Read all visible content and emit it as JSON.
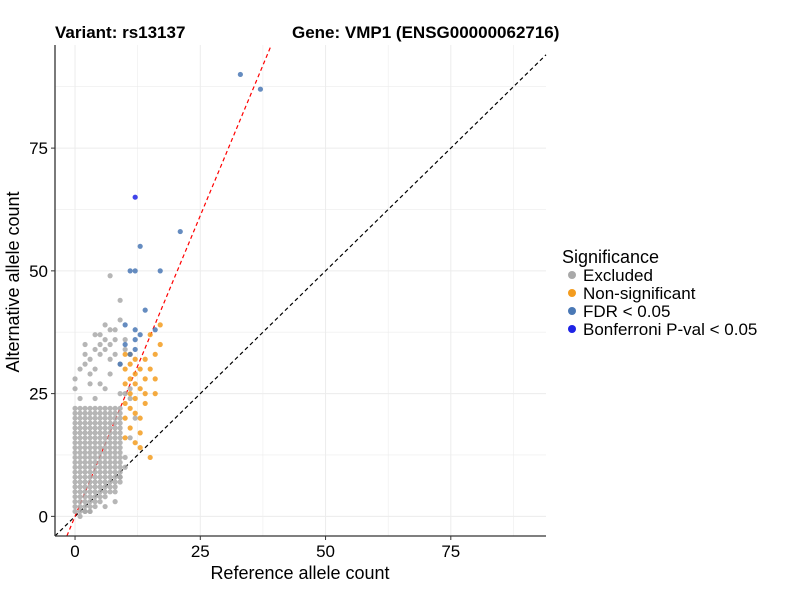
{
  "chart_data": {
    "type": "scatter",
    "title_left": "Variant: rs13137",
    "title_right": "Gene: VMP1 (ENSG00000062716)",
    "xlabel": "Reference allele count",
    "ylabel": "Alternative allele count",
    "xlim": [
      -4,
      94
    ],
    "ylim": [
      -4,
      96
    ],
    "xticks": [
      0,
      25,
      50,
      75
    ],
    "yticks": [
      0,
      25,
      50,
      75
    ],
    "grid": true,
    "legend": {
      "title": "Significance",
      "position": "right",
      "entries": [
        {
          "label": "Excluded",
          "color": "#A9A9A9"
        },
        {
          "label": "Non-significant",
          "color": "#F39C1F"
        },
        {
          "label": "FDR < 0.05",
          "color": "#4A78B5"
        },
        {
          "label": "Bonferroni P-val < 0.05",
          "color": "#1E23E6"
        }
      ]
    },
    "reference_lines": [
      {
        "name": "identity",
        "slope": 1,
        "intercept": 0,
        "color": "#000000",
        "style": "dashed"
      },
      {
        "name": "fitted",
        "slope": 2.45,
        "intercept": 0,
        "color": "#FF0000",
        "style": "dashed"
      }
    ],
    "series": [
      {
        "name": "Excluded",
        "color": "#A9A9A9",
        "fill_region": {
          "x_range": [
            0,
            9
          ],
          "y_range": [
            1,
            22
          ]
        },
        "points": [
          [
            0,
            26
          ],
          [
            0,
            28
          ],
          [
            1,
            30
          ],
          [
            2,
            31
          ],
          [
            2,
            33
          ],
          [
            3,
            29
          ],
          [
            3,
            32
          ],
          [
            4,
            34
          ],
          [
            4,
            30
          ],
          [
            5,
            33
          ],
          [
            5,
            35
          ],
          [
            5,
            37
          ],
          [
            6,
            34
          ],
          [
            6,
            36
          ],
          [
            7,
            32
          ],
          [
            7,
            35
          ],
          [
            7,
            38
          ],
          [
            8,
            33
          ],
          [
            8,
            36
          ],
          [
            8,
            38
          ],
          [
            9,
            40
          ],
          [
            9,
            44
          ],
          [
            7,
            49
          ],
          [
            10,
            34
          ],
          [
            10,
            36
          ],
          [
            10,
            25
          ],
          [
            11,
            26
          ],
          [
            11,
            24
          ],
          [
            1,
            0
          ],
          [
            2,
            1
          ],
          [
            3,
            1
          ],
          [
            8,
            5
          ],
          [
            9,
            8
          ],
          [
            10,
            10
          ],
          [
            8,
            3
          ],
          [
            6,
            2
          ],
          [
            10,
            12
          ],
          [
            11,
            16
          ],
          [
            12,
            20
          ],
          [
            4,
            24
          ],
          [
            6,
            26
          ],
          [
            1,
            24
          ],
          [
            9,
            25
          ],
          [
            3,
            27
          ],
          [
            5,
            27
          ],
          [
            7,
            29
          ],
          [
            9,
            31
          ],
          [
            2,
            35
          ],
          [
            6,
            39
          ],
          [
            4,
            37
          ]
        ]
      },
      {
        "name": "Non-significant",
        "color": "#F39C1F",
        "points": [
          [
            10,
            27
          ],
          [
            10,
            30
          ],
          [
            10,
            33
          ],
          [
            11,
            22
          ],
          [
            11,
            25
          ],
          [
            11,
            28
          ],
          [
            11,
            31
          ],
          [
            12,
            24
          ],
          [
            12,
            29
          ],
          [
            12,
            32
          ],
          [
            13,
            17
          ],
          [
            13,
            20
          ],
          [
            13,
            26
          ],
          [
            14,
            23
          ],
          [
            14,
            25
          ],
          [
            14,
            28
          ],
          [
            15,
            30
          ],
          [
            15,
            12
          ],
          [
            15,
            37
          ],
          [
            16,
            25
          ],
          [
            16,
            33
          ],
          [
            17,
            35
          ],
          [
            17,
            39
          ],
          [
            10,
            20
          ],
          [
            10,
            23
          ],
          [
            11,
            18
          ],
          [
            12,
            21
          ],
          [
            13,
            14
          ],
          [
            12,
            15
          ],
          [
            14,
            32
          ],
          [
            16,
            28
          ],
          [
            11,
            33
          ],
          [
            13,
            30
          ],
          [
            10,
            16
          ],
          [
            12,
            27
          ]
        ]
      },
      {
        "name": "FDR < 0.05",
        "color": "#4A78B5",
        "points": [
          [
            33,
            90
          ],
          [
            37,
            87
          ],
          [
            21,
            58
          ],
          [
            13,
            55
          ],
          [
            11,
            50
          ],
          [
            12,
            50
          ],
          [
            17,
            50
          ],
          [
            14,
            42
          ],
          [
            16,
            38
          ],
          [
            12,
            38
          ],
          [
            10,
            35
          ],
          [
            12,
            34
          ],
          [
            10,
            39
          ],
          [
            11,
            33
          ],
          [
            9,
            31
          ],
          [
            13,
            37
          ],
          [
            12,
            36
          ]
        ]
      },
      {
        "name": "Bonferroni P-val < 0.05",
        "color": "#1E23E6",
        "points": [
          [
            12,
            65
          ]
        ]
      }
    ]
  }
}
